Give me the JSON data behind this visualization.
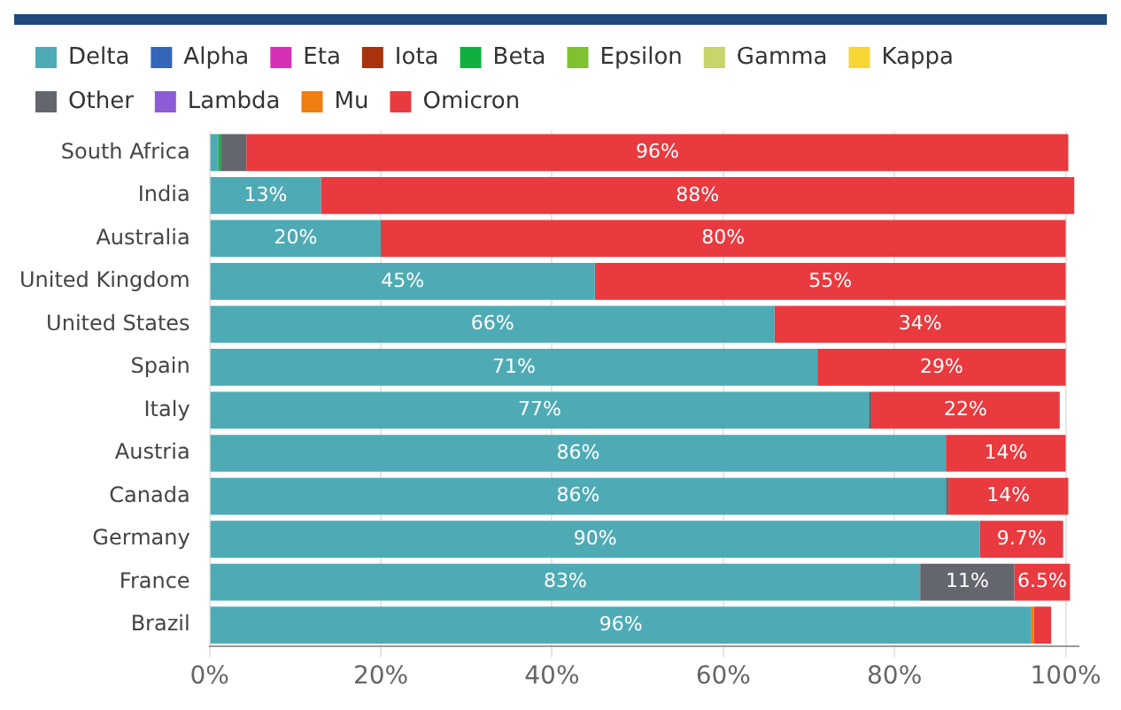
{
  "chart_data": {
    "type": "bar",
    "orientation": "horizontal",
    "stacked": true,
    "categories": [
      "South Africa",
      "India",
      "Australia",
      "United Kingdom",
      "United States",
      "Spain",
      "Italy",
      "Austria",
      "Canada",
      "Germany",
      "France",
      "Brazil"
    ],
    "series": [
      {
        "name": "Delta",
        "color": "#4eabb5",
        "values": [
          1,
          13,
          20,
          45,
          66,
          71,
          77,
          86,
          86,
          90,
          83,
          96
        ],
        "value_labels": [
          null,
          "13%",
          "20%",
          "45%",
          "66%",
          "71%",
          "77%",
          "86%",
          "86%",
          "90%",
          "83%",
          "96%"
        ]
      },
      {
        "name": "Alpha",
        "color": "#3366b8",
        "values": [
          null,
          null,
          null,
          null,
          null,
          null,
          null,
          null,
          null,
          null,
          null,
          null
        ]
      },
      {
        "name": "Eta",
        "color": "#d631b6",
        "values": [
          null,
          null,
          null,
          null,
          null,
          null,
          null,
          null,
          null,
          null,
          null,
          null
        ]
      },
      {
        "name": "Iota",
        "color": "#a8330c",
        "values": [
          null,
          null,
          null,
          null,
          null,
          null,
          null,
          null,
          null,
          null,
          null,
          null
        ]
      },
      {
        "name": "Beta",
        "color": "#10b040",
        "values": [
          0.3,
          null,
          null,
          null,
          null,
          null,
          null,
          null,
          null,
          null,
          null,
          null
        ]
      },
      {
        "name": "Epsilon",
        "color": "#7fc12e",
        "values": [
          null,
          null,
          null,
          null,
          null,
          null,
          null,
          null,
          null,
          null,
          null,
          null
        ]
      },
      {
        "name": "Gamma",
        "color": "#c8d46c",
        "values": [
          null,
          null,
          null,
          null,
          null,
          null,
          null,
          null,
          null,
          null,
          null,
          null
        ]
      },
      {
        "name": "Kappa",
        "color": "#f7d633",
        "values": [
          null,
          null,
          null,
          null,
          null,
          null,
          null,
          null,
          null,
          null,
          null,
          null
        ]
      },
      {
        "name": "Other",
        "color": "#63666d",
        "values": [
          3,
          null,
          null,
          null,
          null,
          null,
          0.3,
          null,
          0.3,
          null,
          11,
          null
        ],
        "value_labels": [
          null,
          null,
          null,
          null,
          null,
          null,
          null,
          null,
          null,
          null,
          "11%",
          null
        ]
      },
      {
        "name": "Lambda",
        "color": "#8e5bd6",
        "values": [
          null,
          null,
          null,
          null,
          null,
          null,
          null,
          null,
          null,
          null,
          null,
          null
        ]
      },
      {
        "name": "Mu",
        "color": "#f07d10",
        "values": [
          null,
          null,
          null,
          null,
          null,
          null,
          null,
          null,
          null,
          null,
          null,
          0.3
        ]
      },
      {
        "name": "Omicron",
        "color": "#e83a3f",
        "values": [
          96,
          88,
          80,
          55,
          34,
          29,
          22,
          14,
          14,
          9.7,
          6.5,
          2
        ],
        "value_labels": [
          "96%",
          "88%",
          "80%",
          "55%",
          "34%",
          "29%",
          "22%",
          "14%",
          "14%",
          "9.7%",
          "6.5%",
          null
        ]
      }
    ],
    "xlim": [
      0,
      101.5
    ],
    "xticks": [
      {
        "value": 0,
        "label": "0%"
      },
      {
        "value": 20,
        "label": "20%"
      },
      {
        "value": 40,
        "label": "40%"
      },
      {
        "value": 60,
        "label": "60%"
      },
      {
        "value": 80,
        "label": "80%"
      },
      {
        "value": 100,
        "label": "100%"
      }
    ],
    "grid": "x",
    "legend": "top left"
  }
}
